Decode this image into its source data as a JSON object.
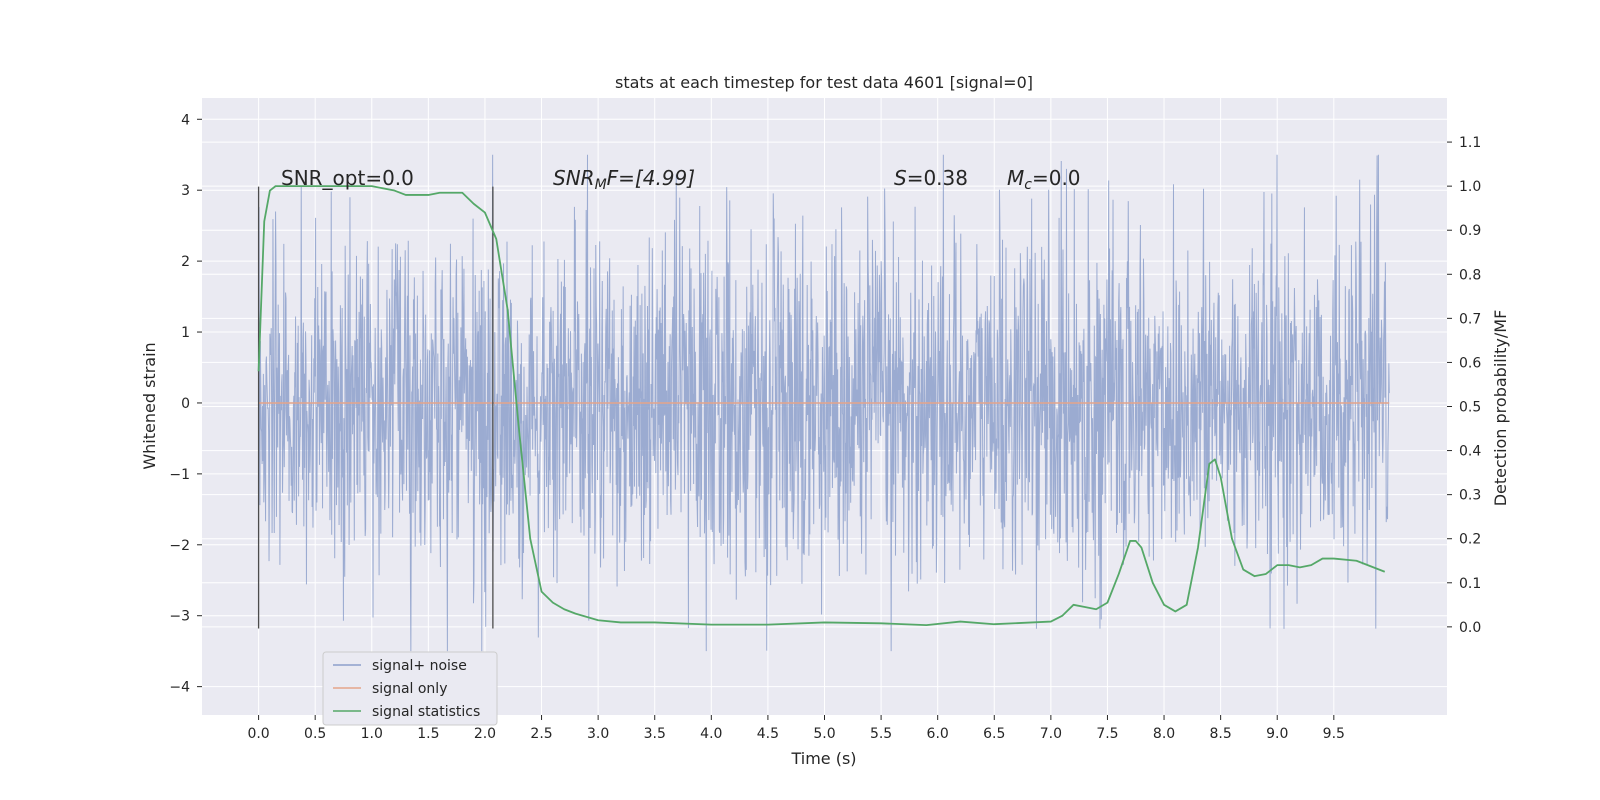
{
  "chart_data": {
    "type": "line",
    "title": "stats at each timestep for test data 4601 [signal=0]",
    "xlabel": "Time (s)",
    "ylabel_left": "Whitened strain",
    "ylabel_right": "Detection probability/MF",
    "xlim": [
      -0.5,
      10.5
    ],
    "ylim_left": [
      -4.4,
      4.3
    ],
    "ylim_right": [
      -0.2,
      1.2
    ],
    "x_ticks": [
      "0.0",
      "0.5",
      "1.0",
      "1.5",
      "2.0",
      "2.5",
      "3.0",
      "3.5",
      "4.0",
      "4.5",
      "5.0",
      "5.5",
      "6.0",
      "6.5",
      "7.0",
      "7.5",
      "8.0",
      "8.5",
      "9.0",
      "9.5"
    ],
    "y_ticks_left": [
      "4",
      "3",
      "2",
      "1",
      "0",
      "−1",
      "−2",
      "−3",
      "−4"
    ],
    "y_ticks_right": [
      "1.1",
      "1.0",
      "0.9",
      "0.8",
      "0.7",
      "0.6",
      "0.5",
      "0.4",
      "0.3",
      "0.2",
      "0.1",
      "0.0"
    ],
    "grid": true,
    "legend": {
      "placement": "lower-left",
      "entries": [
        {
          "label": "signal+ noise",
          "color": "#8da0cb"
        },
        {
          "label": "signal only",
          "color": "#e5a48a"
        },
        {
          "label": "signal statistics",
          "color": "#55a868"
        }
      ]
    },
    "vlines": [
      {
        "x": 0.0,
        "ymin": -3.18,
        "ymax": 3.05
      },
      {
        "x": 2.07,
        "ymin": -3.18,
        "ymax": 3.05
      }
    ],
    "annotations": {
      "snr_opt": "SNR_opt=0.0",
      "snr_mf_base": "SNR",
      "snr_mf_sub": "M",
      "snr_mf_rest": "F=[4.99]",
      "s_label": "S",
      "s_value": "=0.38",
      "mc_base": "M",
      "mc_sub": "c",
      "mc_value": "=0.0"
    },
    "series": [
      {
        "name": "signal+ noise",
        "axis": "left",
        "color": "#8da0cb",
        "x_range": [
          0.0,
          9.99
        ],
        "typical_amplitude": 1.2,
        "peak_amplitude": 3.5
      },
      {
        "name": "signal only",
        "axis": "left",
        "color": "#e5a48a",
        "x": [
          0.0,
          9.99
        ],
        "y": [
          0.0,
          0.0
        ]
      },
      {
        "name": "signal statistics",
        "axis": "right",
        "color": "#55a868",
        "x": [
          0.0,
          0.05,
          0.1,
          0.15,
          0.2,
          0.3,
          0.5,
          0.7,
          1.0,
          1.2,
          1.3,
          1.4,
          1.5,
          1.6,
          1.7,
          1.8,
          1.9,
          2.0,
          2.1,
          2.2,
          2.3,
          2.4,
          2.5,
          2.6,
          2.7,
          2.8,
          3.0,
          3.2,
          3.5,
          4.0,
          4.5,
          5.0,
          5.5,
          5.9,
          6.2,
          6.5,
          7.0,
          7.1,
          7.2,
          7.3,
          7.4,
          7.5,
          7.6,
          7.7,
          7.75,
          7.8,
          7.9,
          8.0,
          8.1,
          8.2,
          8.3,
          8.4,
          8.45,
          8.5,
          8.55,
          8.6,
          8.7,
          8.8,
          8.9,
          9.0,
          9.1,
          9.2,
          9.3,
          9.4,
          9.5,
          9.7,
          9.95
        ],
        "y": [
          0.58,
          0.92,
          0.99,
          1.0,
          1.0,
          1.0,
          1.0,
          1.0,
          1.0,
          0.99,
          0.98,
          0.98,
          0.98,
          0.985,
          0.985,
          0.985,
          0.96,
          0.94,
          0.88,
          0.72,
          0.45,
          0.2,
          0.08,
          0.055,
          0.04,
          0.03,
          0.015,
          0.01,
          0.01,
          0.005,
          0.005,
          0.01,
          0.008,
          0.004,
          0.012,
          0.006,
          0.012,
          0.025,
          0.05,
          0.045,
          0.04,
          0.055,
          0.12,
          0.195,
          0.195,
          0.18,
          0.1,
          0.05,
          0.035,
          0.05,
          0.18,
          0.37,
          0.38,
          0.34,
          0.27,
          0.2,
          0.13,
          0.115,
          0.12,
          0.14,
          0.14,
          0.135,
          0.14,
          0.155,
          0.155,
          0.15,
          0.125
        ]
      }
    ]
  }
}
